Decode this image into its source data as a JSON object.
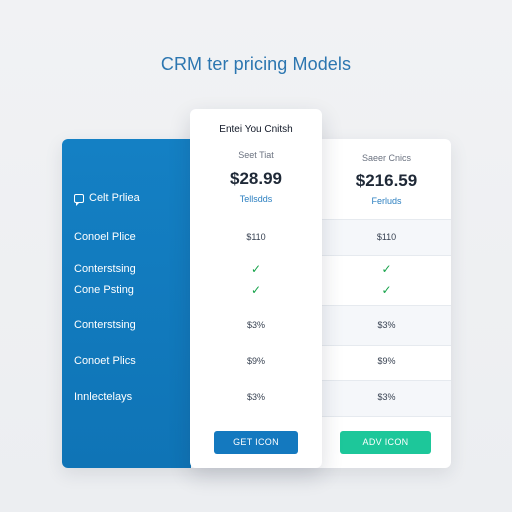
{
  "page": {
    "title": "CRM ter pricing Models"
  },
  "features": {
    "header": "Celt Prliea",
    "header_icon": "chat-icon",
    "rows": [
      "Conoel Plice",
      "Conterstsing",
      "Cone Psting",
      "Conterstsing",
      "Conoet Plics",
      "Innlectelays"
    ]
  },
  "plans": [
    {
      "top_label": "Entei You Cnitsh",
      "subtitle": "Seet Tiat",
      "price": "$28.99",
      "period": "Tellsdds",
      "values": [
        "$110",
        "✓",
        "✓",
        "$3%",
        "$9%",
        "$3%"
      ],
      "button": "GET ICON",
      "button_color": "#1479bf"
    },
    {
      "top_label": "",
      "subtitle": "Saeer Cnics",
      "price": "$216.59",
      "period": "Ferluds",
      "values": [
        "$110",
        "✓",
        "✓",
        "$3%",
        "$9%",
        "$3%"
      ],
      "button": "ADV ICON",
      "button_color": "#1dc79a"
    }
  ],
  "colors": {
    "feature_column": "#1278bd",
    "check": "#16a34a",
    "title": "#2b76b0"
  }
}
